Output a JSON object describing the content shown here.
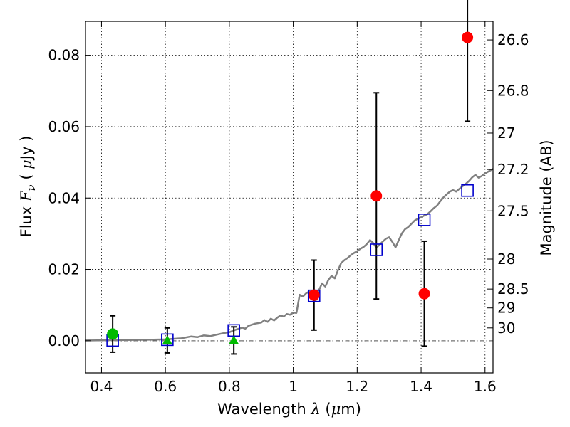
{
  "chart_data": {
    "type": "scatter",
    "xlabel": {
      "prefix": "Wavelength",
      "symbol": "λ",
      "unit_open": "(",
      "unit_mu": "μ",
      "unit_rest": "m)"
    },
    "ylabel": {
      "prefix": "Flux",
      "symbol": "F",
      "subscript": "ν",
      "unit_open": "(",
      "unit_mu": "μ",
      "unit_rest": "Jy )"
    },
    "y2label": "Magnitude (AB)",
    "xlim": [
      0.35,
      1.625
    ],
    "ylim": [
      -0.009,
      0.0895
    ],
    "xticks": [
      0.4,
      0.6,
      0.8,
      1.0,
      1.2,
      1.4,
      1.6
    ],
    "xtick_labels": [
      "0.4",
      "0.6",
      "0.8",
      "1",
      "1.2",
      "1.4",
      "1.6"
    ],
    "yticks": [
      0.0,
      0.02,
      0.04,
      0.06,
      0.08
    ],
    "ytick_labels": [
      "0.00",
      "0.02",
      "0.04",
      "0.06",
      "0.08"
    ],
    "y2ticks": [
      {
        "label": "26.6",
        "flux": 0.0843
      },
      {
        "label": "26.8",
        "flux": 0.0701
      },
      {
        "label": "27",
        "flux": 0.0582
      },
      {
        "label": "27.2",
        "flux": 0.048
      },
      {
        "label": "27.5",
        "flux": 0.0364
      },
      {
        "label": "28",
        "flux": 0.0229
      },
      {
        "label": "28.5",
        "flux": 0.0145
      },
      {
        "label": "29",
        "flux": 0.0092
      },
      {
        "label": "30",
        "flux": 0.0036
      }
    ],
    "grid": true,
    "zero_line": 0.0,
    "series": [
      {
        "name": "model-spectrum",
        "kind": "line",
        "color": "#808080",
        "x": [
          0.35,
          0.45,
          0.55,
          0.6,
          0.65,
          0.68,
          0.7,
          0.72,
          0.74,
          0.76,
          0.78,
          0.8,
          0.82,
          0.84,
          0.85,
          0.86,
          0.88,
          0.9,
          0.91,
          0.92,
          0.93,
          0.94,
          0.95,
          0.96,
          0.97,
          0.98,
          0.99,
          1.0,
          1.01,
          1.02,
          1.03,
          1.04,
          1.05,
          1.06,
          1.07,
          1.08,
          1.09,
          1.1,
          1.11,
          1.12,
          1.13,
          1.14,
          1.15,
          1.16,
          1.17,
          1.18,
          1.19,
          1.2,
          1.21,
          1.22,
          1.23,
          1.24,
          1.25,
          1.26,
          1.27,
          1.28,
          1.29,
          1.3,
          1.31,
          1.32,
          1.33,
          1.34,
          1.35,
          1.36,
          1.37,
          1.38,
          1.39,
          1.4,
          1.41,
          1.42,
          1.43,
          1.44,
          1.45,
          1.46,
          1.47,
          1.48,
          1.49,
          1.5,
          1.51,
          1.52,
          1.53,
          1.54,
          1.55,
          1.56,
          1.57,
          1.58,
          1.59,
          1.6,
          1.61,
          1.62,
          1.625
        ],
        "y": [
          0.0001,
          0.0002,
          0.0003,
          0.0004,
          0.0007,
          0.0012,
          0.001,
          0.0015,
          0.0013,
          0.0017,
          0.0021,
          0.0024,
          0.0031,
          0.0037,
          0.0034,
          0.0042,
          0.0048,
          0.0051,
          0.0058,
          0.0053,
          0.0062,
          0.0057,
          0.0065,
          0.0071,
          0.0068,
          0.0075,
          0.0073,
          0.0079,
          0.0078,
          0.0129,
          0.0124,
          0.0133,
          0.0138,
          0.0128,
          0.0112,
          0.0141,
          0.0161,
          0.0152,
          0.0171,
          0.0182,
          0.0175,
          0.0198,
          0.0218,
          0.0226,
          0.0232,
          0.024,
          0.0246,
          0.0251,
          0.0258,
          0.0263,
          0.0271,
          0.0282,
          0.0274,
          0.0261,
          0.0269,
          0.0278,
          0.0286,
          0.029,
          0.0277,
          0.0262,
          0.0282,
          0.0301,
          0.0313,
          0.0319,
          0.0328,
          0.0337,
          0.0342,
          0.0346,
          0.0351,
          0.0355,
          0.0363,
          0.0372,
          0.0379,
          0.0391,
          0.0402,
          0.041,
          0.0418,
          0.0422,
          0.0418,
          0.0426,
          0.0433,
          0.044,
          0.0448,
          0.0458,
          0.0465,
          0.0457,
          0.0462,
          0.0469,
          0.0474,
          0.0479,
          0.0482
        ]
      },
      {
        "name": "model-photometry",
        "kind": "open-square",
        "color": "#0000cc",
        "x": [
          0.435,
          0.606,
          0.814,
          1.065,
          1.26,
          1.41,
          1.545
        ],
        "y": [
          0.0001,
          0.0003,
          0.0029,
          0.0126,
          0.0255,
          0.0339,
          0.0421
        ]
      },
      {
        "name": "measured-flux",
        "kind": "circle",
        "color": "#ff0000",
        "x": [
          1.065,
          1.26,
          1.41,
          1.545
        ],
        "y": [
          0.0128,
          0.0406,
          0.0132,
          0.085
        ],
        "err": [
          0.0098,
          0.0289,
          0.0147,
          0.0235
        ]
      },
      {
        "name": "green-point",
        "kind": "circle",
        "color": "#00bb00",
        "x": [
          0.435
        ],
        "y": [
          0.0019
        ],
        "err": [
          0.0051
        ]
      },
      {
        "name": "green-upper-limits",
        "kind": "triangle",
        "color": "#00bb00",
        "x": [
          0.606,
          0.814
        ],
        "y": [
          0.0001,
          0.0001
        ],
        "err": [
          0.0035,
          0.0038
        ]
      }
    ]
  }
}
